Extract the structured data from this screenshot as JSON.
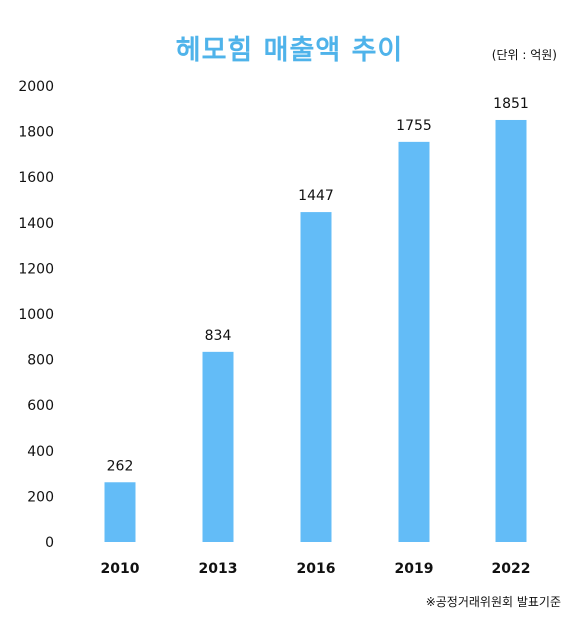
{
  "chart_data": {
    "type": "bar",
    "title": "헤모힘 매출액 추이",
    "unit_note": "(단위 : 억원)",
    "source_note": "※공정거래위원회 발표기준",
    "categories": [
      "2010",
      "2013",
      "2016",
      "2019",
      "2022"
    ],
    "values": [
      262,
      834,
      1447,
      1755,
      1851
    ],
    "value_labels": [
      "262",
      "834",
      "1447",
      "1755",
      "1851"
    ],
    "yticks": [
      "0",
      "200",
      "400",
      "600",
      "800",
      "1000",
      "1200",
      "1400",
      "1600",
      "1800",
      "2000"
    ],
    "ylim": [
      0,
      2000
    ],
    "grid": false,
    "legend": "none",
    "colors": {
      "bar": "#63bcf7",
      "title": "#4fb3ea",
      "text": "#111111"
    }
  }
}
